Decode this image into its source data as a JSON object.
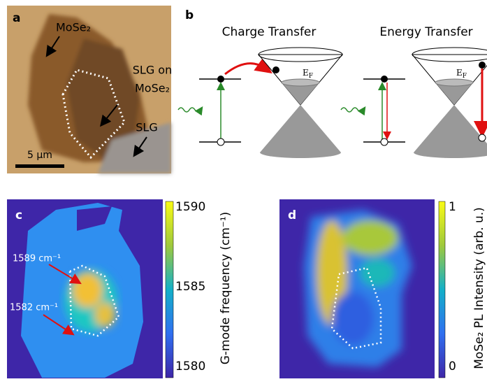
{
  "panel_a": {
    "label": "a",
    "flake": "MoSe₂",
    "hetero_line1": "SLG on",
    "hetero_line2": "MoSe₂",
    "graphene": "SLG",
    "scale_bar": "5 µm"
  },
  "panel_b": {
    "label": "b",
    "left_title": "Charge Transfer",
    "right_title": "Energy Transfer",
    "fermi": {
      "base": "E",
      "sub": "F"
    }
  },
  "panel_c": {
    "label": "c",
    "annotation_high": "1589 cm⁻¹",
    "annotation_low": "1582 cm⁻¹",
    "colorbar_ticks": [
      1590,
      1585,
      1580
    ],
    "colorbar_label": "G-mode frequency (cm⁻¹)"
  },
  "panel_d": {
    "label": "d",
    "colorbar_ticks": [
      1,
      0
    ],
    "colorbar_label": "MoSe₂ PL Intensity (arb. u.)"
  }
}
